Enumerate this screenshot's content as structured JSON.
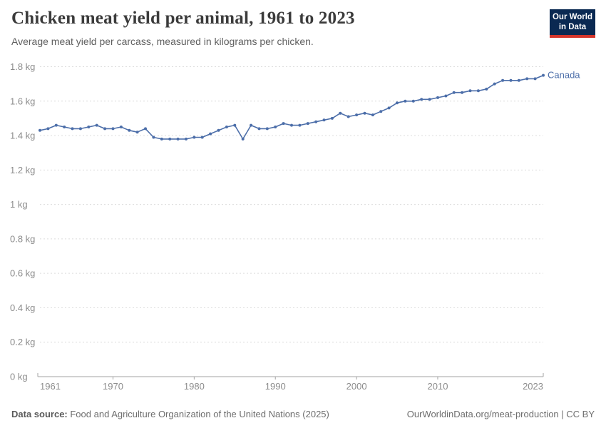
{
  "header": {
    "title": "Chicken meat yield per animal, 1961 to 2023",
    "subtitle": "Average meat yield per carcass, measured in kilograms per chicken."
  },
  "logo": {
    "line1": "Our World",
    "line2": "in Data",
    "bg_color": "#0a2952",
    "accent_color": "#d4352b"
  },
  "footer": {
    "source_label": "Data source:",
    "source_text": " Food and Agriculture Organization of the United Nations (2025)",
    "citation_link": "OurWorldinData.org/meat-production",
    "citation_suffix": " | CC BY"
  },
  "chart_data": {
    "type": "line",
    "title": "Chicken meat yield per animal, 1961 to 2023",
    "xlabel": "",
    "ylabel": "kg",
    "ylim": [
      0,
      1.8
    ],
    "ytick_labels": [
      "0 kg",
      "0.2 kg",
      "0.4 kg",
      "0.6 kg",
      "0.8 kg",
      "1 kg",
      "1.2 kg",
      "1.4 kg",
      "1.6 kg",
      "1.8 kg"
    ],
    "ytick_values": [
      0,
      0.2,
      0.4,
      0.6,
      0.8,
      1,
      1.2,
      1.4,
      1.6,
      1.8
    ],
    "xticks": [
      1961,
      1970,
      1980,
      1990,
      2000,
      2010,
      2023
    ],
    "grid": "horizontal-dashed",
    "legend_position": "inline-right",
    "line_color": "#4c6ea9",
    "grid_color": "#dcdcdc",
    "axis_color": "#a3a3a3",
    "tick_label_color": "#8c8c8c",
    "series": [
      {
        "name": "Canada",
        "x": [
          1961,
          1962,
          1963,
          1964,
          1965,
          1966,
          1967,
          1968,
          1969,
          1970,
          1971,
          1972,
          1973,
          1974,
          1975,
          1976,
          1977,
          1978,
          1979,
          1980,
          1981,
          1982,
          1983,
          1984,
          1985,
          1986,
          1987,
          1988,
          1989,
          1990,
          1991,
          1992,
          1993,
          1994,
          1995,
          1996,
          1997,
          1998,
          1999,
          2000,
          2001,
          2002,
          2003,
          2004,
          2005,
          2006,
          2007,
          2008,
          2009,
          2010,
          2011,
          2012,
          2013,
          2014,
          2015,
          2016,
          2017,
          2018,
          2019,
          2020,
          2021,
          2022,
          2023
        ],
        "values": [
          1.43,
          1.44,
          1.46,
          1.45,
          1.44,
          1.44,
          1.45,
          1.46,
          1.44,
          1.44,
          1.45,
          1.43,
          1.42,
          1.44,
          1.39,
          1.38,
          1.38,
          1.38,
          1.38,
          1.39,
          1.39,
          1.41,
          1.43,
          1.45,
          1.46,
          1.38,
          1.46,
          1.44,
          1.44,
          1.45,
          1.47,
          1.46,
          1.46,
          1.47,
          1.48,
          1.49,
          1.5,
          1.53,
          1.51,
          1.52,
          1.53,
          1.52,
          1.54,
          1.56,
          1.59,
          1.6,
          1.6,
          1.61,
          1.61,
          1.62,
          1.63,
          1.65,
          1.65,
          1.66,
          1.66,
          1.67,
          1.7,
          1.72,
          1.72,
          1.72,
          1.73,
          1.73,
          1.75
        ]
      }
    ]
  }
}
